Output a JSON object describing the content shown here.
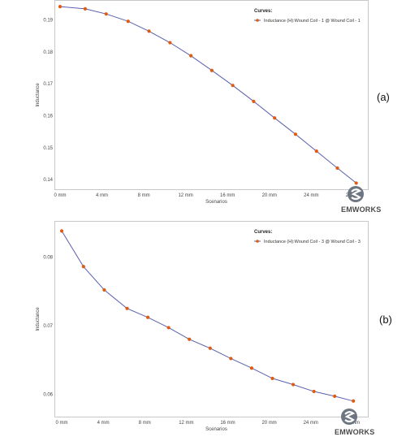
{
  "chart_data": [
    {
      "type": "line",
      "panel_label": "(a)",
      "title": "",
      "xlabel": "Scenarios",
      "ylabel": "Inductance",
      "x_unit": "mm",
      "xticks": [
        "0 mm",
        "4 mm",
        "8 mm",
        "12 mm",
        "16 mm",
        "20 mm",
        "24 mm",
        "28 mm"
      ],
      "xtick_values": [
        0,
        4,
        8,
        12,
        16,
        20,
        24,
        28
      ],
      "yticks": [
        "0.19",
        "0.18",
        "0.17",
        "0.16",
        "0.15",
        "0.14"
      ],
      "ytick_values": [
        0.19,
        0.18,
        0.17,
        0.16,
        0.15,
        0.14
      ],
      "xlim": [
        0,
        28.4
      ],
      "ylim": [
        0.1385,
        0.195
      ],
      "legend_title": "Curves:",
      "legend_position": "top-right",
      "grid": false,
      "series": [
        {
          "name": "Inductance (H):Wound Coil - 1 @ Wound Coil - 1",
          "line_color": "#5b5fb0",
          "marker_color": "#e05a10",
          "x": [
            0,
            2.4,
            4.4,
            6.5,
            8.5,
            10.5,
            12.5,
            14.5,
            16.5,
            18.5,
            20.5,
            22.5,
            24.5,
            26.5,
            28.3
          ],
          "values": [
            0.1942,
            0.1935,
            0.1919,
            0.1896,
            0.1865,
            0.1829,
            0.1788,
            0.1742,
            0.1695,
            0.1645,
            0.1593,
            0.1542,
            0.1489,
            0.1436,
            0.1389
          ]
        }
      ]
    },
    {
      "type": "line",
      "panel_label": "(b)",
      "title": "",
      "xlabel": "Scenarios",
      "ylabel": "Inductance",
      "x_unit": "mm",
      "xticks": [
        "0 mm",
        "4 mm",
        "8 mm",
        "12 mm",
        "16 mm",
        "20 mm",
        "24 mm",
        "28 mm"
      ],
      "xtick_values": [
        0,
        4,
        8,
        12,
        16,
        20,
        24,
        28
      ],
      "yticks": [
        "0.08",
        "0.07",
        "0.06"
      ],
      "ytick_values": [
        0.08,
        0.07,
        0.06
      ],
      "xlim": [
        0,
        28.4
      ],
      "ylim": [
        0.0585,
        0.0842
      ],
      "legend_title": "Curves:",
      "legend_position": "top-right",
      "grid": false,
      "series": [
        {
          "name": "Inductance (H):Wound Coil - 3 @ Wound Coil - 3",
          "line_color": "#5b5fb0",
          "marker_color": "#e05a10",
          "x": [
            0,
            2.1,
            4.1,
            6.3,
            8.3,
            10.3,
            12.3,
            14.3,
            16.3,
            18.3,
            20.3,
            22.3,
            24.3,
            26.3,
            28.1
          ],
          "values": [
            0.0838,
            0.0786,
            0.0752,
            0.0725,
            0.0712,
            0.0697,
            0.068,
            0.0667,
            0.0652,
            0.0638,
            0.0623,
            0.0614,
            0.0604,
            0.0597,
            0.059
          ]
        }
      ]
    }
  ],
  "branding": {
    "logo_text": "EMWORKS",
    "logo_icon": "emworks-logo-icon"
  }
}
